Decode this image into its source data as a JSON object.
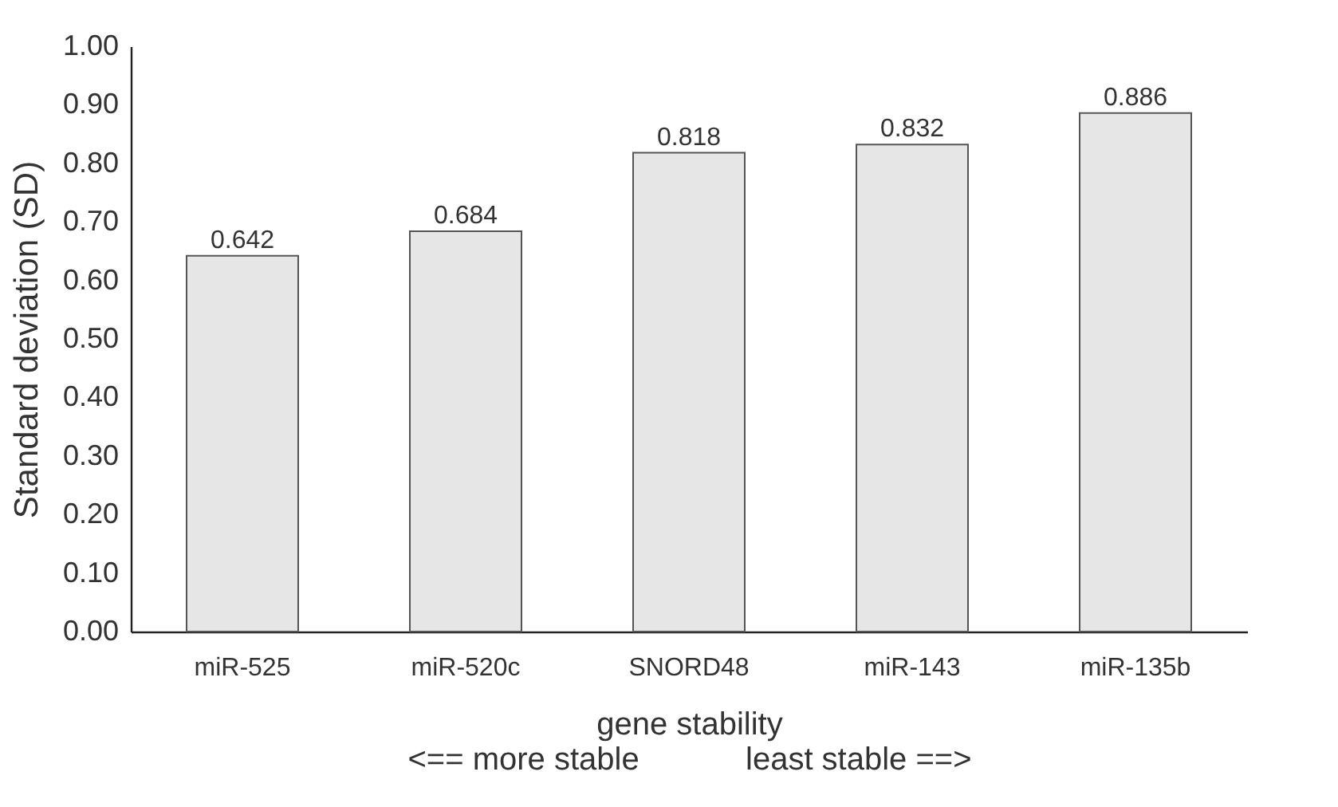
{
  "chart_data": {
    "type": "bar",
    "ylabel": "Standard deviation (SD)",
    "xlabel": "gene stability",
    "annotations": [
      "<== more stable",
      "least stable ==>"
    ],
    "categories": [
      "miR-525",
      "miR-520c",
      "SNORD48",
      "miR-143",
      "miR-135b"
    ],
    "values": [
      0.642,
      0.684,
      0.818,
      0.832,
      0.886
    ],
    "color": "#e6e6e6",
    "data_labels": true,
    "grid": false,
    "ylim": [
      0,
      1
    ],
    "yticks": [
      {
        "value": 0,
        "label": "0.00"
      },
      {
        "value": 0.1,
        "label": "0.10"
      },
      {
        "value": 0.2,
        "label": "0.20"
      },
      {
        "value": 0.3,
        "label": "0.30"
      },
      {
        "value": 0.4,
        "label": "0.40"
      },
      {
        "value": 0.5,
        "label": "0.50"
      },
      {
        "value": 0.6,
        "label": "0.60"
      },
      {
        "value": 0.7,
        "label": "0.70"
      },
      {
        "value": 0.8,
        "label": "0.80"
      },
      {
        "value": 0.9,
        "label": "0.90"
      },
      {
        "value": 1,
        "label": "1.00"
      }
    ]
  }
}
